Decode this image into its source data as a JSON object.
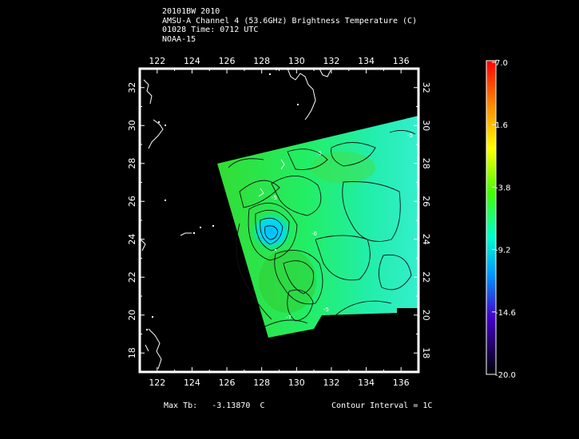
{
  "header": {
    "line1": "20101BW 2010",
    "line2": "AMSU-A Channel 4 (53.6GHz) Brightness Temperature (C)",
    "line3": "01028 Time: 0712 UTC",
    "line4": "NOAA-15"
  },
  "map": {
    "lon_ticks": [
      "122",
      "124",
      "126",
      "128",
      "130",
      "132",
      "134",
      "136"
    ],
    "lat_ticks": [
      "18",
      "20",
      "22",
      "24",
      "26",
      "28",
      "30",
      "32"
    ],
    "lon_range": [
      121,
      137
    ],
    "lat_range": [
      17,
      33
    ]
  },
  "colorbar": {
    "labels": [
      "7.0",
      "1.6",
      "-3.8",
      "-9.2",
      "-14.6",
      "-20.0"
    ],
    "range": [
      -20.0,
      7.0
    ],
    "colors": [
      "#ff0000",
      "#ff9900",
      "#ffff00",
      "#00ff00",
      "#00ffff",
      "#0066ff",
      "#5500cc",
      "#000000"
    ]
  },
  "footer": {
    "max_label": "Max Tb:",
    "max_value": "-3.13870",
    "max_unit": "C",
    "contour": "Contour Interval = 1C"
  },
  "contour_labels": [
    "-5",
    "-5",
    "-5",
    "-5",
    "-6",
    "-7"
  ]
}
